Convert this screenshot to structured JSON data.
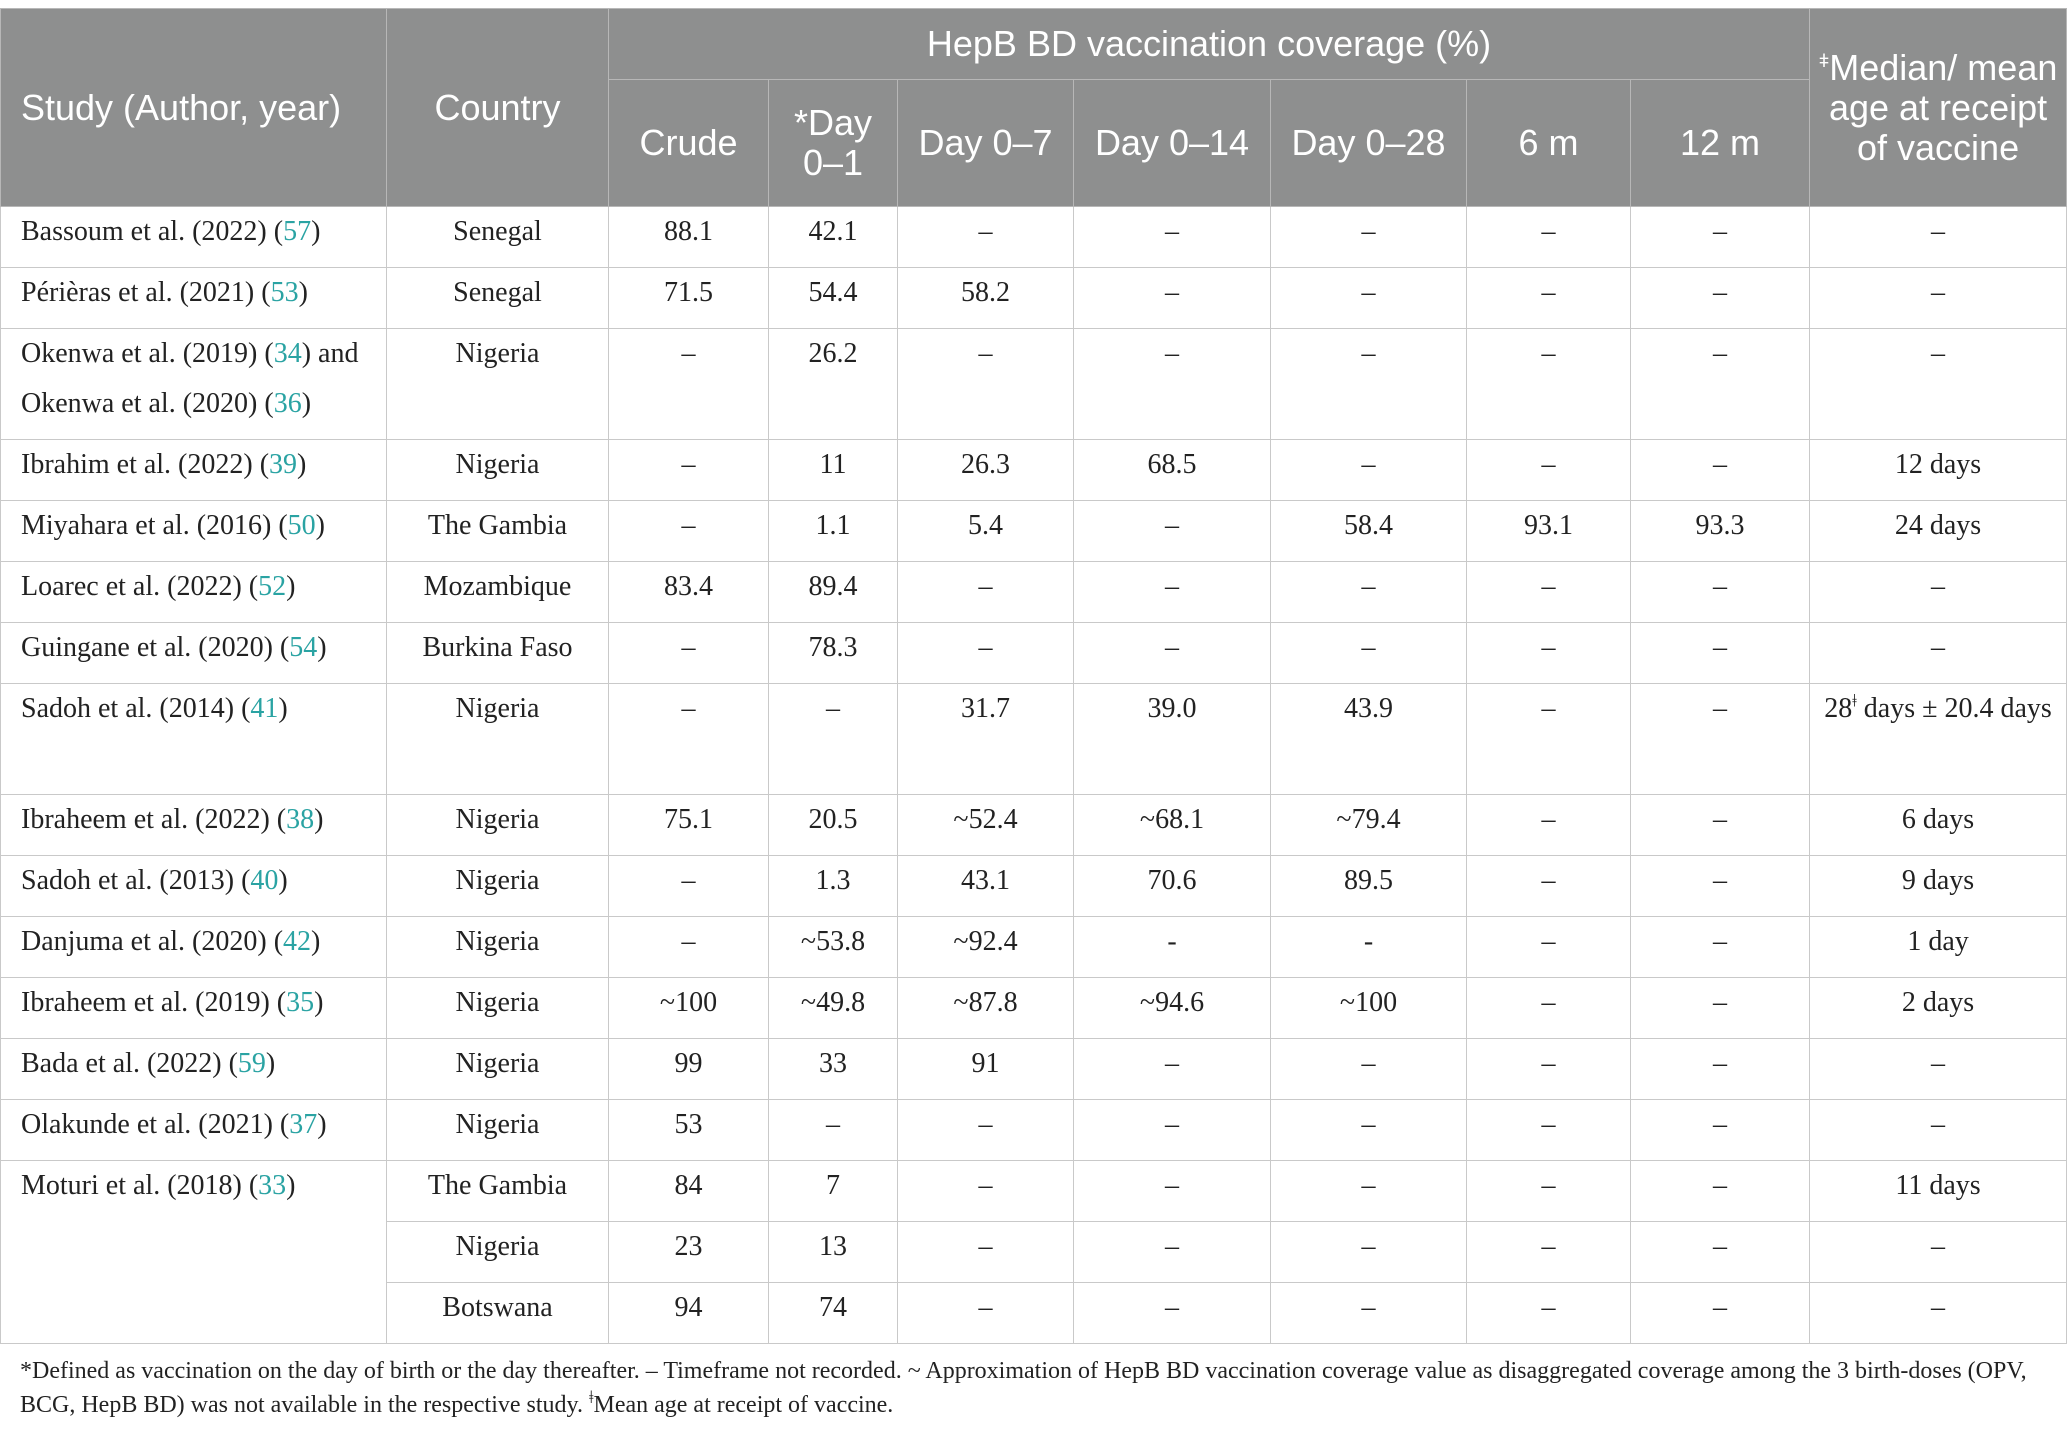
{
  "headers": {
    "study": "Study (Author, year)",
    "country": "Country",
    "coverage_group": "HepB BD vaccination coverage (%)",
    "age_sup": "ǂ",
    "age_label": "Median/ mean age at receipt of vaccine",
    "sub": [
      "Crude",
      "*Day 0–1",
      "Day 0–7",
      "Day 0–14",
      "Day 0–28",
      "6 m",
      "12 m"
    ]
  },
  "rows": [
    {
      "study": "Bassoum et al. (2022) (",
      "ref": "57",
      "country": "Senegal",
      "vals": [
        "88.1",
        "42.1",
        "–",
        "–",
        "–",
        "–",
        "–"
      ],
      "age": "–"
    },
    {
      "study": "Périèras et al. (2021) (",
      "ref": "53",
      "country": "Senegal",
      "vals": [
        "71.5",
        "54.4",
        "58.2",
        "–",
        "–",
        "–",
        "–"
      ],
      "age": "–"
    },
    {
      "study": "Okenwa et al. (2019) (",
      "ref": "34",
      "study2": ") and Okenwa et al. (2020) (",
      "ref2": "36",
      "country": "Nigeria",
      "vals": [
        "–",
        "26.2",
        "–",
        "–",
        "–",
        "–",
        "–"
      ],
      "age": "–"
    },
    {
      "study": "Ibrahim et al. (2022) (",
      "ref": "39",
      "country": "Nigeria",
      "vals": [
        "–",
        "11",
        "26.3",
        "68.5",
        "–",
        "–",
        "–"
      ],
      "age": "12 days"
    },
    {
      "study": "Miyahara et al. (2016) (",
      "ref": "50",
      "country": "The Gambia",
      "vals": [
        "–",
        "1.1",
        "5.4",
        "–",
        "58.4",
        "93.1",
        "93.3"
      ],
      "age": "24 days"
    },
    {
      "study": "Loarec et al. (2022) (",
      "ref": "52",
      "country": "Mozambique",
      "vals": [
        "83.4",
        "89.4",
        "–",
        "–",
        "–",
        "–",
        "–"
      ],
      "age": "–"
    },
    {
      "study": "Guingane et al. (2020) (",
      "ref": "54",
      "country": "Burkina Faso",
      "vals": [
        "–",
        "78.3",
        "–",
        "–",
        "–",
        "–",
        "–"
      ],
      "age": "–"
    },
    {
      "study": "Sadoh et al. (2014) (",
      "ref": "41",
      "country": "Nigeria",
      "vals": [
        "–",
        "–",
        "31.7",
        "39.0",
        "43.9",
        "–",
        "–"
      ],
      "age_pre": "28",
      "age_sup": "ǂ",
      "age": " days ± 20.4 days"
    },
    {
      "study": "Ibraheem et al. (2022) (",
      "ref": "38",
      "country": "Nigeria",
      "vals": [
        "75.1",
        "20.5",
        "~52.4",
        "~68.1",
        "~79.4",
        "–",
        "–"
      ],
      "age": "6 days"
    },
    {
      "study": "Sadoh et al. (2013) (",
      "ref": "40",
      "country": "Nigeria",
      "vals": [
        "–",
        "1.3",
        "43.1",
        "70.6",
        "89.5",
        "–",
        "–"
      ],
      "age": "9 days"
    },
    {
      "study": "Danjuma et al. (2020) (",
      "ref": "42",
      "country": "Nigeria",
      "vals": [
        "–",
        "~53.8",
        "~92.4",
        "-",
        "-",
        "–",
        "–"
      ],
      "age": "1 day"
    },
    {
      "study": "Ibraheem et al. (2019) (",
      "ref": "35",
      "country": "Nigeria",
      "vals": [
        "~100",
        "~49.8",
        "~87.8",
        "~94.6",
        "~100",
        "–",
        "–"
      ],
      "age": "2 days"
    },
    {
      "study": "Bada et al. (2022) (",
      "ref": "59",
      "country": "Nigeria",
      "vals": [
        "99",
        "33",
        "91",
        "–",
        "–",
        "–",
        "–"
      ],
      "age": "–"
    },
    {
      "study": "Olakunde et al. (2021) (",
      "ref": "37",
      "country": "Nigeria",
      "vals": [
        "53",
        "–",
        "–",
        "–",
        "–",
        "–",
        "–"
      ],
      "age": "–"
    },
    {
      "study": "Moturi et al. (2018) (",
      "ref": "33",
      "country": "The Gambia",
      "vals": [
        "84",
        "7",
        "–",
        "–",
        "–",
        "–",
        "–"
      ],
      "age": "11 days"
    },
    {
      "country": "Nigeria",
      "vals": [
        "23",
        "13",
        "–",
        "–",
        "–",
        "–",
        "–"
      ],
      "age": "–"
    },
    {
      "country": "Botswana",
      "vals": [
        "94",
        "74",
        "–",
        "–",
        "–",
        "–",
        "–"
      ],
      "age": "–"
    }
  ],
  "close_paren": ")",
  "footnote": {
    "part1": "*Defined as vaccination on the day of birth or the day thereafter. – Timeframe not recorded. ~ Approximation of HepB BD vaccination coverage value as disaggregated coverage among the 3 birth-doses (OPV, BCG, HepB BD) was not available in the respective study. ",
    "sup": "ǂ",
    "part2": "Mean age at receipt of vaccine."
  },
  "colors": {
    "header_bg": "#8e8f8f",
    "link": "#2aa3a3",
    "border": "#c9c9c9"
  }
}
